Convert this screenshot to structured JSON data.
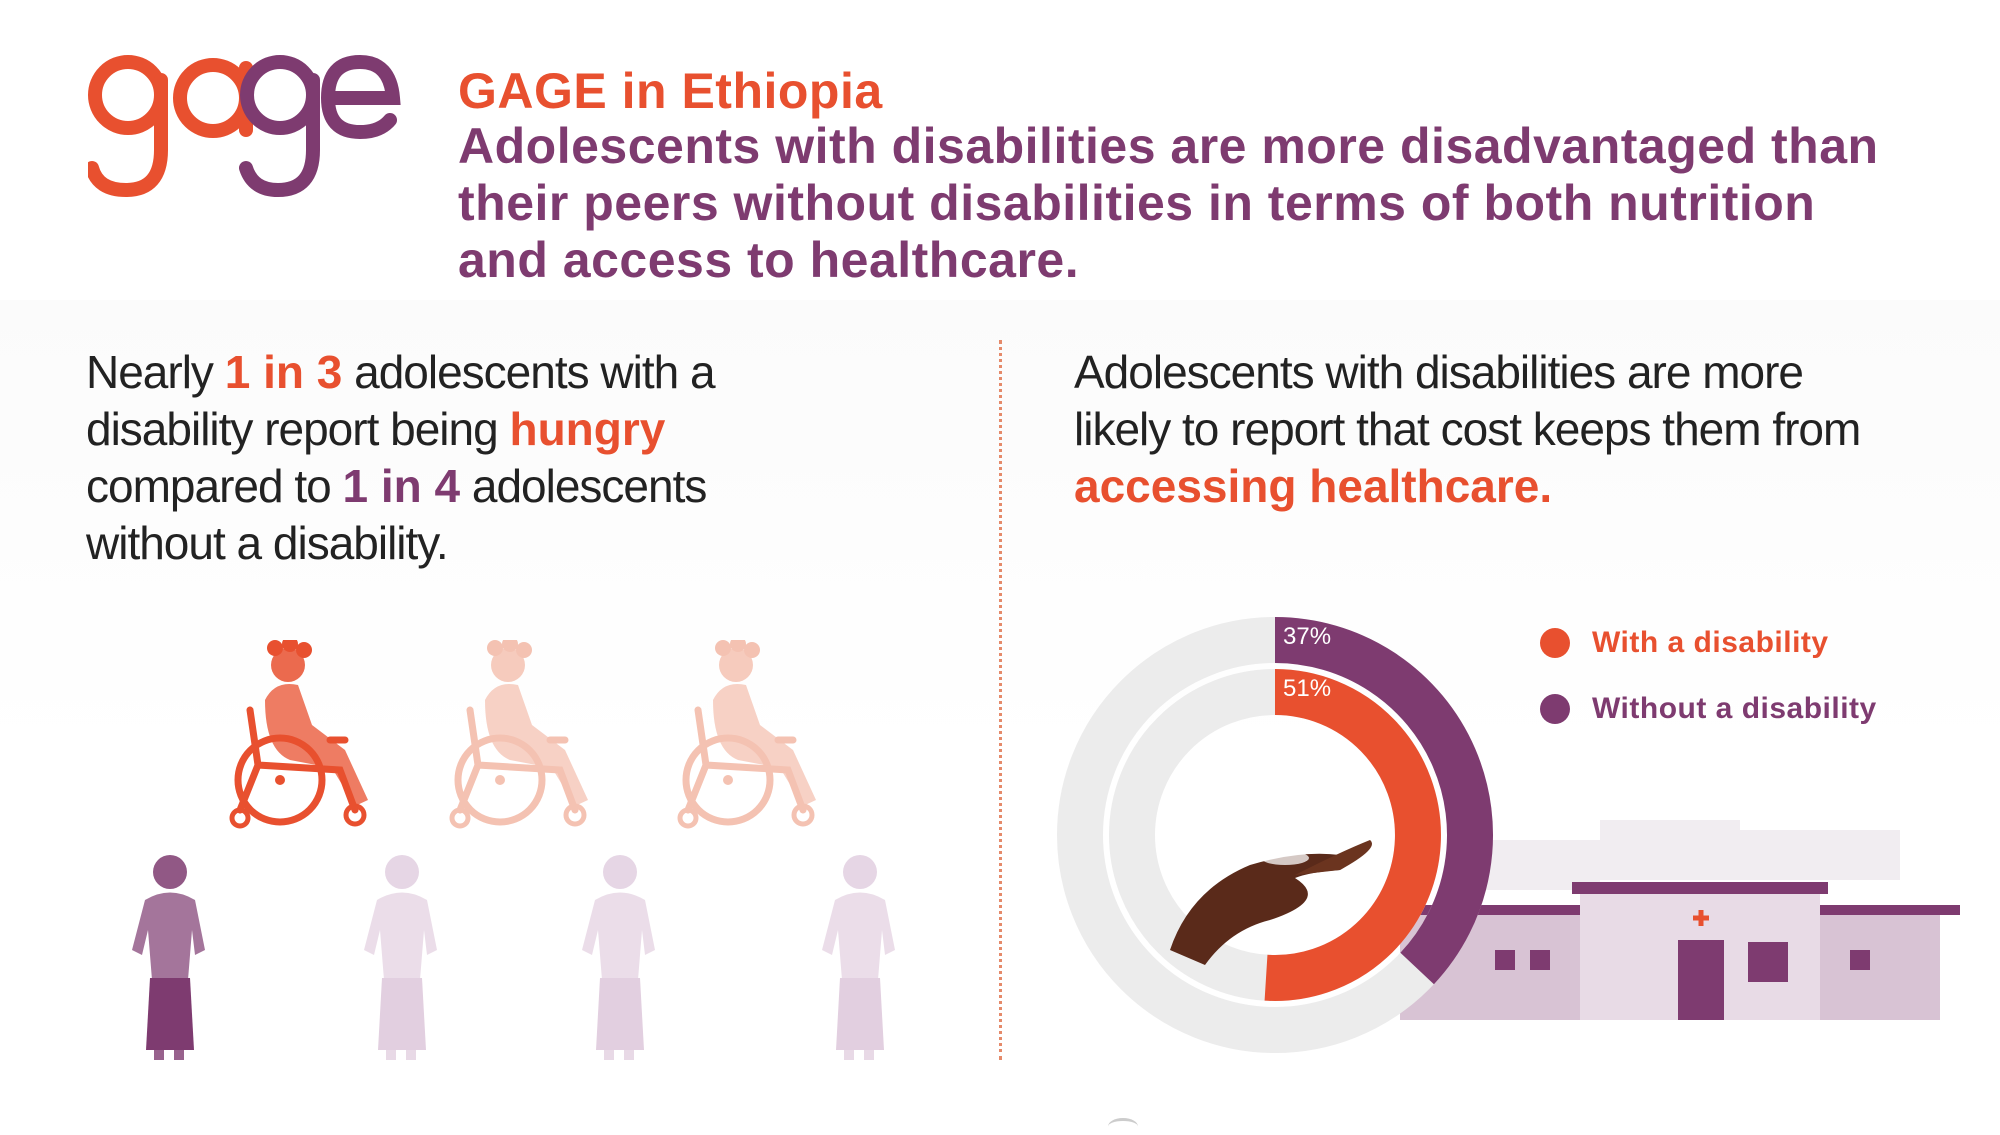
{
  "logo": {
    "text": "gage",
    "colors": {
      "primary": "#e8502f",
      "secondary": "#7e3b70"
    }
  },
  "header": {
    "subtitle": "GAGE in Ethiopia",
    "title": "Adolescents with disabilities are more disadvantaged than their peers without disabilities in terms of both nutrition and access to healthcare."
  },
  "left": {
    "t1": "Nearly ",
    "h1": "1 in 3",
    "t2": " adolescents with a disability report being ",
    "h2": "hungry",
    "t3": " compared to ",
    "h3": "1 in 4",
    "t4": " adolescents without a disability.",
    "people": {
      "with_disability": {
        "total": 3,
        "highlighted": 1,
        "icon": "wheelchair-person-icon"
      },
      "without_disability": {
        "total": 4,
        "highlighted": 1,
        "icon": "standing-person-icon"
      }
    }
  },
  "right": {
    "t1": "Adolescents with disabilities are more likely to report that cost keeps them from ",
    "h1": "accessing healthcare",
    "t2": "."
  },
  "chart_data": {
    "type": "donut",
    "series": [
      {
        "name": "With a disability",
        "value": 51,
        "label": "51%",
        "color": "#e8502f"
      },
      {
        "name": "Without a disability",
        "value": 37,
        "label": "37%",
        "color": "#7e3b70"
      }
    ],
    "max": 100,
    "legend_position": "top-right"
  },
  "legend": {
    "items": [
      {
        "label": "With a disability",
        "color": "#e8502f"
      },
      {
        "label": "Without a disability",
        "color": "#7e3b70"
      }
    ]
  }
}
